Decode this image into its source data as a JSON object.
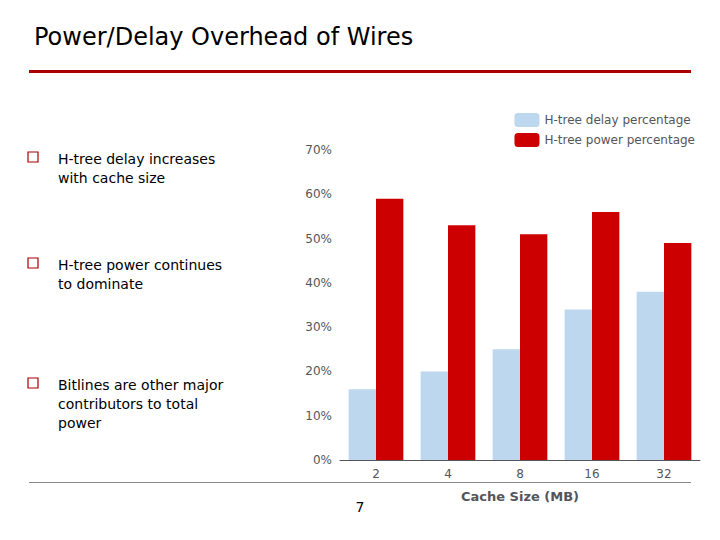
{
  "chart_data": {
    "type": "bar",
    "title": "Power/Delay Overhead of Wires",
    "categories": [
      "2",
      "4",
      "8",
      "16",
      "32"
    ],
    "xlabel": "Cache Size (MB)",
    "series": [
      {
        "name": "H-tree delay percentage",
        "color": "#BDD7EE",
        "values": [
          16,
          20,
          25,
          34,
          38
        ]
      },
      {
        "name": "H-tree power percentage",
        "color": "#CC0000",
        "values": [
          59,
          53,
          51,
          56,
          49
        ]
      }
    ],
    "ylim": [
      0,
      70
    ],
    "yticks": [
      {
        "value": 0,
        "label": "0%"
      },
      {
        "value": 10,
        "label": "10%"
      },
      {
        "value": 20,
        "label": "20%"
      },
      {
        "value": 30,
        "label": "30%"
      },
      {
        "value": 40,
        "label": "40%"
      },
      {
        "value": 50,
        "label": "50%"
      },
      {
        "value": 60,
        "label": "60%"
      },
      {
        "value": 70,
        "label": "70%"
      }
    ],
    "grid": false,
    "legend": "upper right",
    "annotations": [
      "H-tree delay increases\nwith cache size",
      "H-tree power continues\nto dominate",
      "Bitlines are other major\ncontributors to total\npower",
      "7"
    ]
  }
}
